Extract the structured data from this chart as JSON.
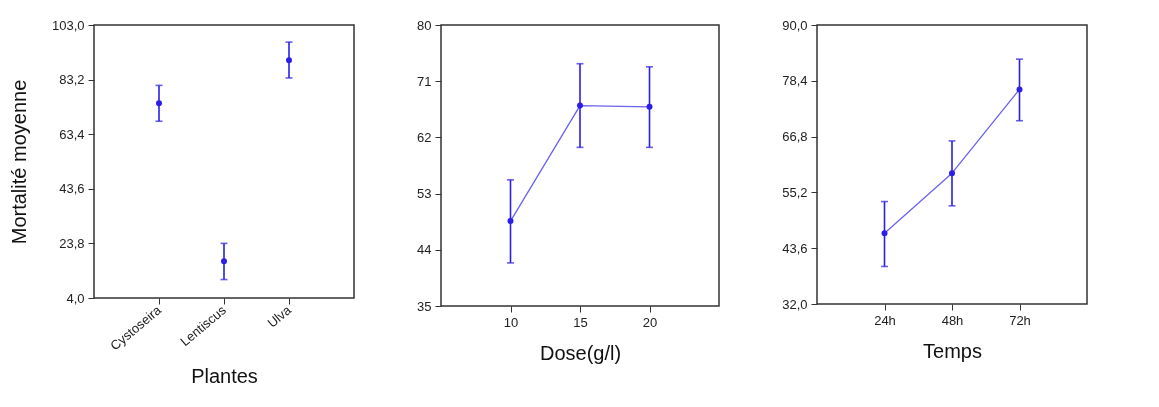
{
  "chart_data": [
    {
      "type": "scatter",
      "xlabel": "Plantes",
      "ylabel": "Mortalité moyenne",
      "categories": [
        "Cystoseira",
        "Lentiscus",
        "Ulva"
      ],
      "series": [
        {
          "color": "#2b1ee8",
          "values": [
            74.6,
            17.3,
            90.2
          ],
          "errors": [
            [
              68.1,
              81.1
            ],
            [
              10.7,
              23.8
            ],
            [
              83.8,
              96.8
            ]
          ]
        }
      ],
      "ylim": [
        4,
        103
      ],
      "yticks": [
        {
          "value": 4,
          "label": "4,0"
        },
        {
          "value": 23.8,
          "label": "23,8"
        },
        {
          "value": 43.6,
          "label": "43,6"
        },
        {
          "value": 63.4,
          "label": "63,4"
        },
        {
          "value": 83.2,
          "label": "83,2"
        },
        {
          "value": 103,
          "label": "103,0"
        }
      ],
      "marker": "circle",
      "grid": false
    },
    {
      "type": "line",
      "xlabel": "Dose(g/l)",
      "x": [
        10,
        15,
        20
      ],
      "series": [
        {
          "color": "#2b1ee8",
          "values": [
            48.6,
            67.1,
            66.9
          ],
          "errors": [
            [
              41.9,
              55.2
            ],
            [
              60.4,
              73.8
            ],
            [
              60.4,
              73.3
            ]
          ]
        }
      ],
      "xlim": [
        5,
        25
      ],
      "xticks": [
        10,
        15,
        20
      ],
      "ylim": [
        35,
        80
      ],
      "yticks": [
        35,
        44,
        53,
        62,
        71,
        80
      ],
      "marker": "circle",
      "line_style": "solid",
      "grid": false
    },
    {
      "type": "line",
      "xlabel": "Temps",
      "categories": [
        "24h",
        "48h",
        "72h"
      ],
      "series": [
        {
          "color": "#2b1ee8",
          "values": [
            46.7,
            59.2,
            76.6
          ],
          "errors": [
            [
              39.8,
              53.3
            ],
            [
              52.4,
              65.9
            ],
            [
              70.1,
              82.9
            ]
          ]
        }
      ],
      "ylim": [
        32,
        90
      ],
      "yticks": [
        {
          "value": 32,
          "label": "32,0"
        },
        {
          "value": 43.6,
          "label": "43,6"
        },
        {
          "value": 55.2,
          "label": "55,2"
        },
        {
          "value": 66.8,
          "label": "66,8"
        },
        {
          "value": 78.4,
          "label": "78,4"
        },
        {
          "value": 90,
          "label": "90,0"
        }
      ],
      "marker": "circle",
      "line_style": "solid",
      "grid": false
    }
  ]
}
